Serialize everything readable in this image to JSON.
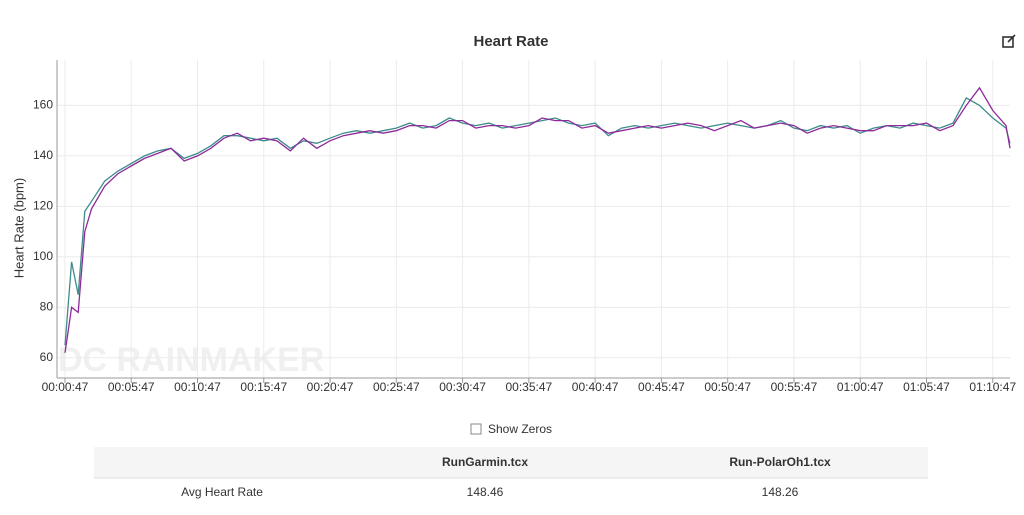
{
  "chart_data": {
    "type": "line",
    "title": "Heart Rate",
    "ylabel": "Heart Rate (bpm)",
    "watermark": "DC RAINMAKER",
    "grid": true,
    "xlim": [
      -0.6,
      71.3
    ],
    "ylim": [
      52,
      178
    ],
    "xticks": [
      {
        "value": 0,
        "label": "00:00:47"
      },
      {
        "value": 5,
        "label": "00:05:47"
      },
      {
        "value": 10,
        "label": "00:10:47"
      },
      {
        "value": 15,
        "label": "00:15:47"
      },
      {
        "value": 20,
        "label": "00:20:47"
      },
      {
        "value": 25,
        "label": "00:25:47"
      },
      {
        "value": 30,
        "label": "00:30:47"
      },
      {
        "value": 35,
        "label": "00:35:47"
      },
      {
        "value": 40,
        "label": "00:40:47"
      },
      {
        "value": 45,
        "label": "00:45:47"
      },
      {
        "value": 50,
        "label": "00:50:47"
      },
      {
        "value": 55,
        "label": "00:55:47"
      },
      {
        "value": 60,
        "label": "01:00:47"
      },
      {
        "value": 65,
        "label": "01:05:47"
      },
      {
        "value": 70,
        "label": "01:10:47"
      }
    ],
    "yticks": [
      60,
      80,
      100,
      120,
      140,
      160
    ],
    "x": [
      0,
      0.5,
      1,
      1.5,
      2,
      3,
      4,
      5,
      6,
      7,
      8,
      9,
      10,
      11,
      12,
      13,
      14,
      15,
      16,
      17,
      18,
      19,
      20,
      21,
      22,
      23,
      24,
      25,
      26,
      27,
      28,
      29,
      30,
      31,
      32,
      33,
      34,
      35,
      36,
      37,
      38,
      39,
      40,
      41,
      42,
      43,
      44,
      45,
      46,
      47,
      48,
      49,
      50,
      51,
      52,
      53,
      54,
      55,
      56,
      57,
      58,
      59,
      60,
      61,
      62,
      63,
      64,
      65,
      66,
      67,
      68,
      69,
      70,
      71,
      71.3
    ],
    "series": [
      {
        "name": "RunGarmin.tcx",
        "color": "#3d8c8a",
        "values": [
          65,
          98,
          85,
          118,
          122,
          130,
          134,
          137,
          140,
          142,
          143,
          139,
          141,
          144,
          148,
          148,
          147,
          146,
          147,
          143,
          146,
          145,
          147,
          149,
          150,
          149,
          150,
          151,
          153,
          151,
          152,
          155,
          153,
          152,
          153,
          151,
          152,
          153,
          154,
          155,
          153,
          152,
          153,
          148,
          151,
          152,
          151,
          152,
          153,
          152,
          151,
          152,
          153,
          152,
          151,
          152,
          154,
          151,
          150,
          152,
          151,
          152,
          149,
          151,
          152,
          151,
          153,
          152,
          151,
          153,
          163,
          160,
          155,
          151,
          145
        ]
      },
      {
        "name": "Run-PolarOh1.tcx",
        "color": "#8e2a9c",
        "values": [
          62,
          80,
          78,
          110,
          119,
          128,
          133,
          136,
          139,
          141,
          143,
          138,
          140,
          143,
          147,
          149,
          146,
          147,
          146,
          142,
          147,
          143,
          146,
          148,
          149,
          150,
          149,
          150,
          152,
          152,
          151,
          154,
          154,
          151,
          152,
          152,
          151,
          152,
          155,
          154,
          154,
          151,
          152,
          149,
          150,
          151,
          152,
          151,
          152,
          153,
          152,
          150,
          152,
          154,
          151,
          152,
          153,
          152,
          149,
          151,
          152,
          151,
          150,
          150,
          152,
          152,
          152,
          153,
          150,
          152,
          160,
          167,
          158,
          152,
          143
        ]
      }
    ]
  },
  "controls": {
    "checkbox_label": "Show Zeros"
  },
  "table": {
    "rows": [
      [
        "Avg Heart Rate",
        "148.46",
        "148.26"
      ]
    ]
  }
}
